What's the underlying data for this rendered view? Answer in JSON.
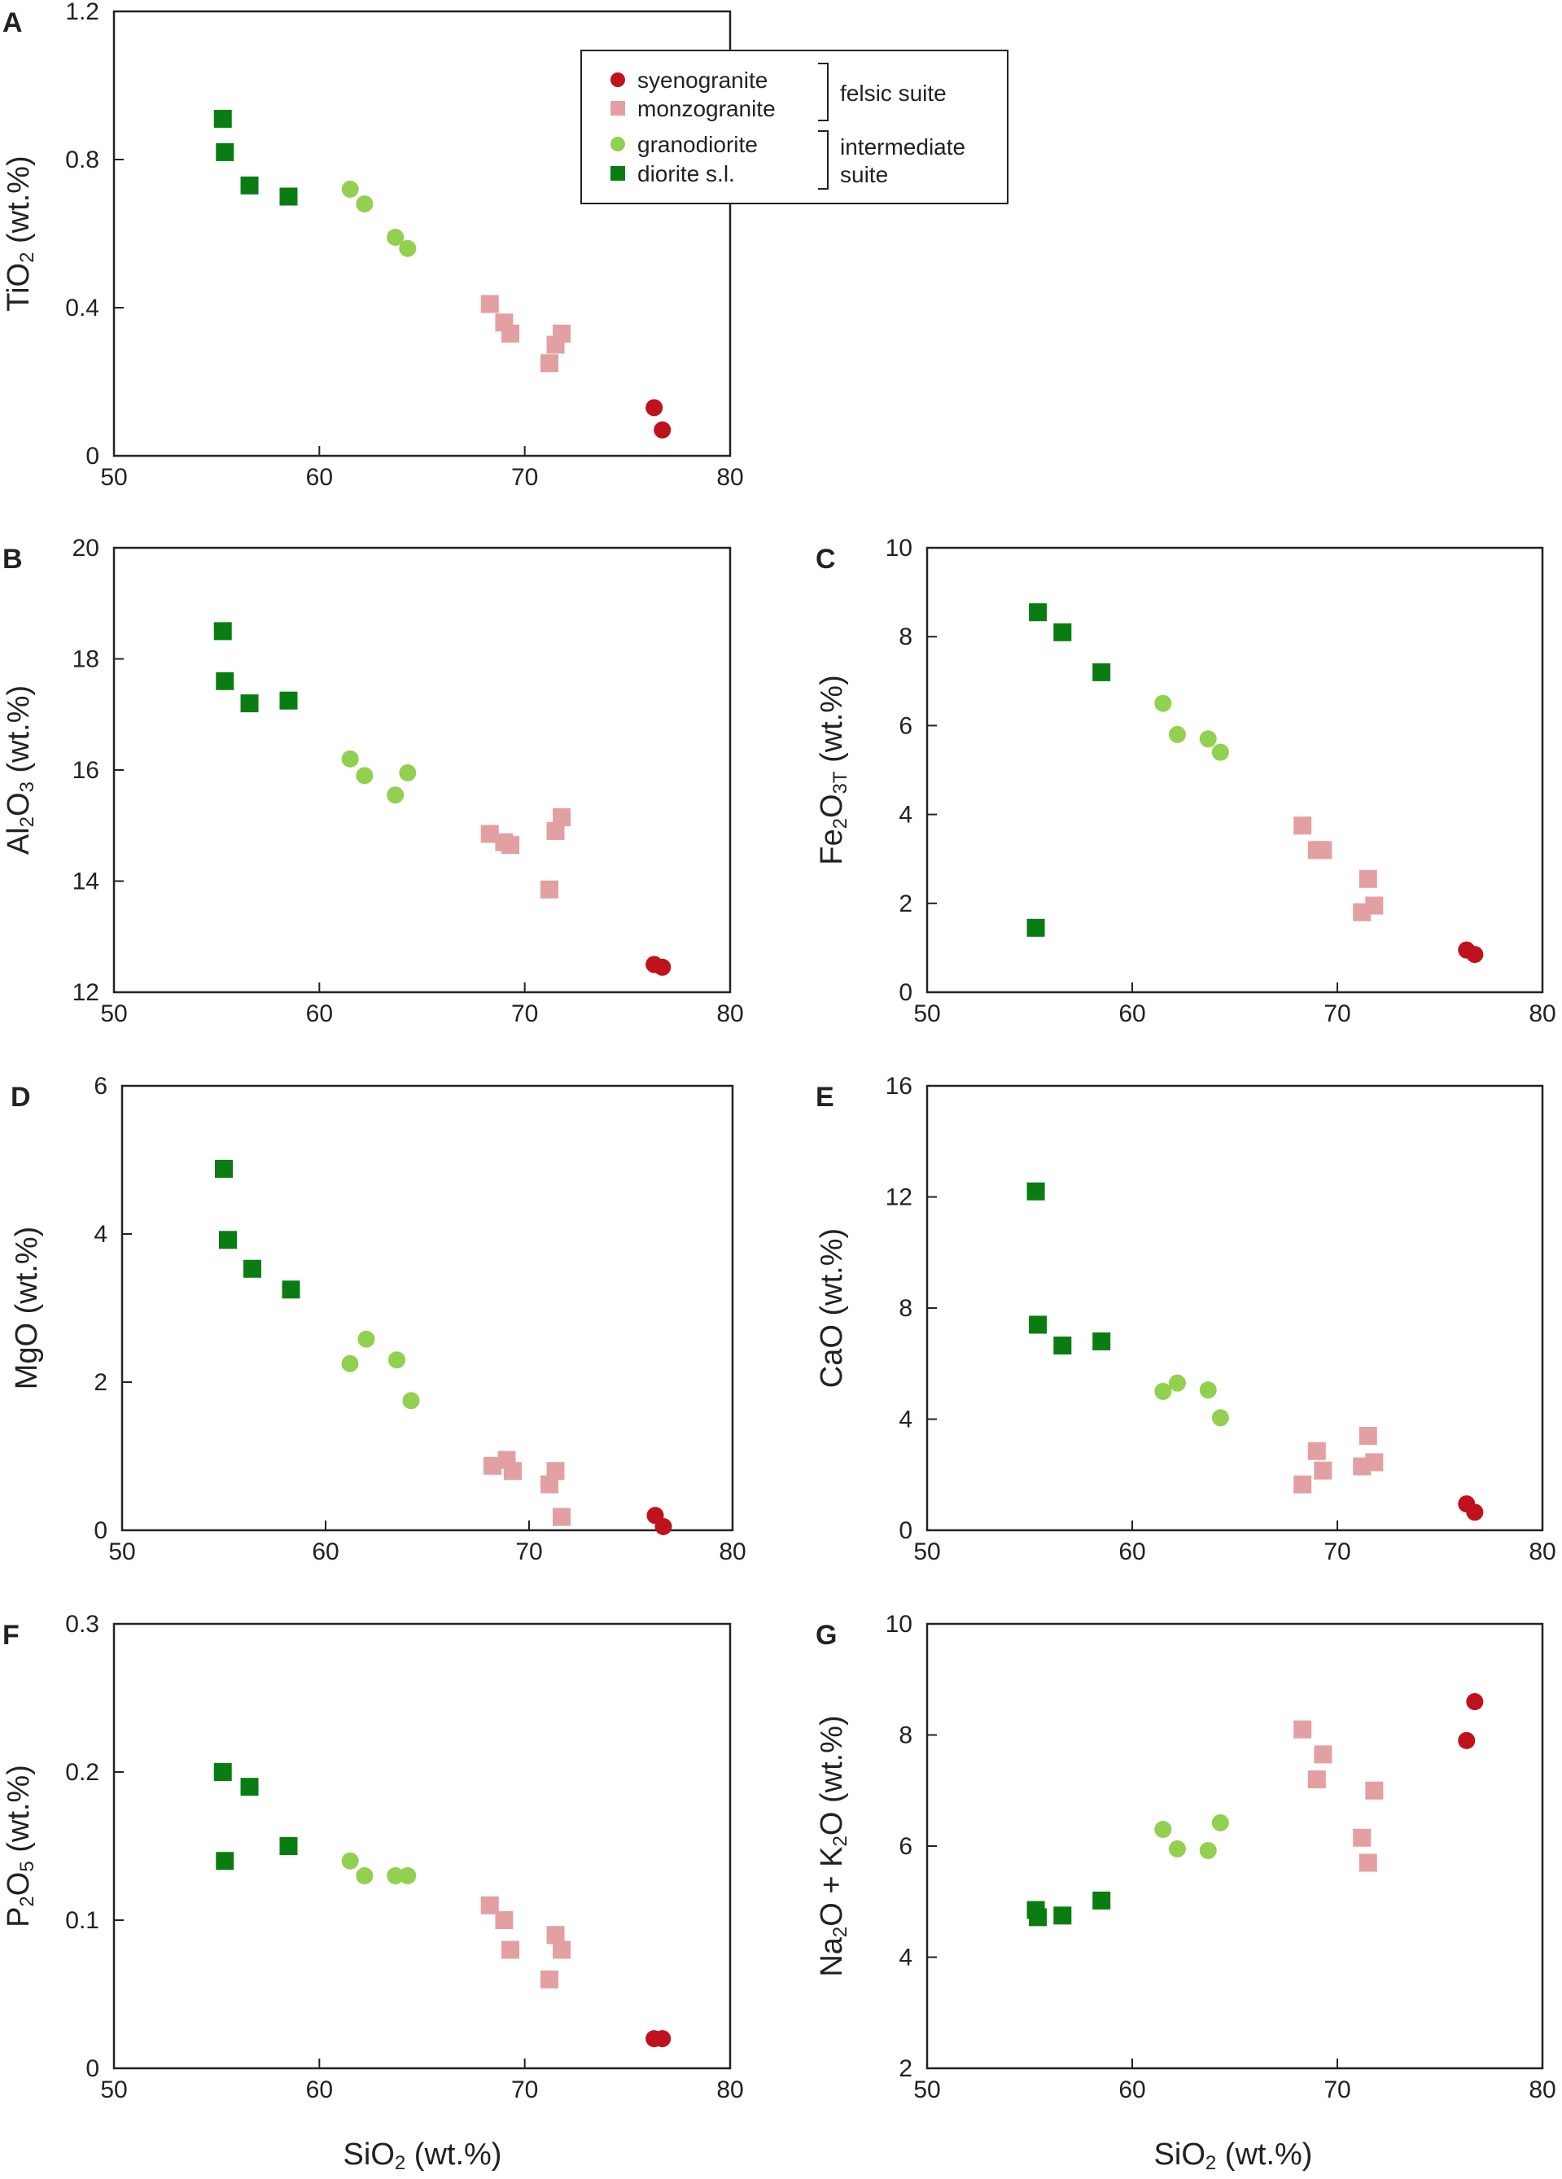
{
  "colors": {
    "syenogranite": "#c0121c",
    "monzogranite": "#e3a0a2",
    "granodiorite": "#92d050",
    "diorite": "#0a7d12",
    "axis": "#222222"
  },
  "legend": {
    "entries": [
      {
        "key": "syenogranite",
        "label": "syenogranite",
        "marker": "circle"
      },
      {
        "key": "monzogranite",
        "label": "monzogranite",
        "marker": "square"
      },
      {
        "key": "granodiorite",
        "label": "granodiorite",
        "marker": "circle"
      },
      {
        "key": "diorite",
        "label": "diorite s.l.",
        "marker": "square"
      }
    ],
    "groups": [
      {
        "lines": [
          "felsic suite"
        ]
      },
      {
        "lines": [
          "intermediate",
          "suite"
        ]
      }
    ]
  },
  "shared_xlabel": {
    "main": "SiO",
    "sub": "2",
    "tail": " (wt.%)"
  },
  "chart_data": [
    {
      "panel": "A",
      "type": "scatter",
      "ylabel": {
        "a": "TiO",
        "b": "2",
        "c": " (wt.%)"
      },
      "xlim": [
        50,
        80
      ],
      "ylim": [
        0,
        1.2
      ],
      "xticks": [
        "50",
        "60",
        "70",
        "80"
      ],
      "yticks": [
        "0",
        "0.4",
        "0.8",
        "1.2"
      ],
      "series": [
        {
          "name": "syenogranite",
          "x": [
            76.3,
            76.7
          ],
          "y": [
            0.13,
            0.07
          ]
        },
        {
          "name": "monzogranite",
          "x": [
            68.3,
            69.0,
            69.3,
            71.2,
            71.5,
            71.8
          ],
          "y": [
            0.41,
            0.36,
            0.33,
            0.25,
            0.3,
            0.33
          ]
        },
        {
          "name": "granodiorite",
          "x": [
            61.5,
            62.2,
            63.7,
            64.3
          ],
          "y": [
            0.72,
            0.68,
            0.59,
            0.56
          ]
        },
        {
          "name": "diorite",
          "x": [
            55.3,
            55.4,
            56.6,
            58.5
          ],
          "y": [
            0.91,
            0.82,
            0.73,
            0.7
          ]
        }
      ]
    },
    {
      "panel": "B",
      "type": "scatter",
      "ylabel": {
        "a": "Al",
        "b": "2",
        "c": "O",
        "d": "3",
        "e": " (wt.%)"
      },
      "xlim": [
        50,
        80
      ],
      "ylim": [
        12,
        20
      ],
      "xticks": [
        "50",
        "60",
        "70",
        "80"
      ],
      "yticks": [
        "12",
        "14",
        "16",
        "18",
        "20"
      ],
      "series": [
        {
          "name": "syenogranite",
          "x": [
            76.3,
            76.7
          ],
          "y": [
            12.5,
            12.45
          ]
        },
        {
          "name": "monzogranite",
          "x": [
            68.3,
            69.0,
            69.3,
            71.2,
            71.5,
            71.8
          ],
          "y": [
            14.85,
            14.7,
            14.65,
            13.85,
            14.9,
            15.15
          ]
        },
        {
          "name": "granodiorite",
          "x": [
            61.5,
            62.2,
            63.7,
            64.3
          ],
          "y": [
            16.2,
            15.9,
            15.55,
            15.95
          ]
        },
        {
          "name": "diorite",
          "x": [
            55.3,
            55.4,
            56.6,
            58.5
          ],
          "y": [
            18.5,
            17.6,
            17.2,
            17.25
          ]
        }
      ]
    },
    {
      "panel": "C",
      "type": "scatter",
      "ylabel": {
        "a": "Fe",
        "b": "2",
        "c": "O",
        "d": "3T",
        "e": " (wt.%)"
      },
      "xlim": [
        50,
        80
      ],
      "ylim": [
        0,
        10
      ],
      "xticks": [
        "50",
        "60",
        "70",
        "80"
      ],
      "yticks": [
        "0",
        "2",
        "4",
        "6",
        "8",
        "10"
      ],
      "series": [
        {
          "name": "syenogranite",
          "x": [
            76.3,
            76.7
          ],
          "y": [
            0.95,
            0.85
          ]
        },
        {
          "name": "monzogranite",
          "x": [
            68.3,
            69.0,
            69.3,
            71.2,
            71.5,
            71.8
          ],
          "y": [
            3.75,
            3.2,
            3.2,
            1.8,
            2.55,
            1.95
          ]
        },
        {
          "name": "granodiorite",
          "x": [
            61.5,
            62.2,
            63.7,
            64.3
          ],
          "y": [
            6.5,
            5.8,
            5.7,
            5.4
          ]
        },
        {
          "name": "diorite",
          "x": [
            55.3,
            55.4,
            56.6,
            58.5
          ],
          "y": [
            1.45,
            8.55,
            8.1,
            7.2
          ]
        }
      ]
    },
    {
      "panel": "D",
      "type": "scatter",
      "ylabel": {
        "a": "MgO (wt.%)"
      },
      "xlim": [
        50,
        80
      ],
      "ylim": [
        0,
        6
      ],
      "xticks": [
        "50",
        "60",
        "70",
        "80"
      ],
      "yticks": [
        "0",
        "2",
        "4",
        "6"
      ],
      "series": [
        {
          "name": "syenogranite",
          "x": [
            76.2,
            76.6
          ],
          "y": [
            0.2,
            0.05
          ]
        },
        {
          "name": "monzogranite",
          "x": [
            68.2,
            68.9,
            69.2,
            71.0,
            71.3,
            71.6
          ],
          "y": [
            0.87,
            0.95,
            0.8,
            0.62,
            0.8,
            0.18
          ]
        },
        {
          "name": "granodiorite",
          "x": [
            61.2,
            62.0,
            63.5,
            64.2
          ],
          "y": [
            2.25,
            2.58,
            2.3,
            1.75
          ]
        },
        {
          "name": "diorite",
          "x": [
            55.0,
            55.2,
            56.4,
            58.3
          ],
          "y": [
            4.88,
            3.92,
            3.53,
            3.25
          ]
        }
      ]
    },
    {
      "panel": "E",
      "type": "scatter",
      "ylabel": {
        "a": "CaO (wt.%)"
      },
      "xlim": [
        50,
        80
      ],
      "ylim": [
        0,
        16
      ],
      "xticks": [
        "50",
        "60",
        "70",
        "80"
      ],
      "yticks": [
        "0",
        "4",
        "8",
        "12",
        "16"
      ],
      "series": [
        {
          "name": "syenogranite",
          "x": [
            76.3,
            76.7
          ],
          "y": [
            0.95,
            0.65
          ]
        },
        {
          "name": "monzogranite",
          "x": [
            68.3,
            69.0,
            69.3,
            71.2,
            71.5,
            71.8
          ],
          "y": [
            1.65,
            2.85,
            2.15,
            2.3,
            3.4,
            2.45
          ]
        },
        {
          "name": "granodiorite",
          "x": [
            61.5,
            62.2,
            63.7,
            64.3
          ],
          "y": [
            5.0,
            5.3,
            5.05,
            4.05
          ]
        },
        {
          "name": "diorite",
          "x": [
            55.3,
            55.4,
            56.6,
            58.5
          ],
          "y": [
            12.2,
            7.4,
            6.65,
            6.8
          ]
        }
      ]
    },
    {
      "panel": "F",
      "type": "scatter",
      "ylabel": {
        "a": "P",
        "b": "2",
        "c": "O",
        "d": "5",
        "e": " (wt.%)"
      },
      "xlim": [
        50,
        80
      ],
      "ylim": [
        0,
        0.3
      ],
      "xticks": [
        "50",
        "60",
        "70",
        "80"
      ],
      "yticks": [
        "0",
        "0.1",
        "0.2",
        "0.3"
      ],
      "series": [
        {
          "name": "syenogranite",
          "x": [
            76.3,
            76.7
          ],
          "y": [
            0.02,
            0.02
          ]
        },
        {
          "name": "monzogranite",
          "x": [
            68.3,
            69.0,
            69.3,
            71.2,
            71.5,
            71.8
          ],
          "y": [
            0.11,
            0.1,
            0.08,
            0.06,
            0.09,
            0.08
          ]
        },
        {
          "name": "granodiorite",
          "x": [
            61.5,
            62.2,
            63.7,
            64.3
          ],
          "y": [
            0.14,
            0.13,
            0.13,
            0.13
          ]
        },
        {
          "name": "diorite",
          "x": [
            55.3,
            55.4,
            56.6,
            58.5
          ],
          "y": [
            0.2,
            0.14,
            0.19,
            0.15
          ]
        }
      ]
    },
    {
      "panel": "G",
      "type": "scatter",
      "ylabel": {
        "a": "Na",
        "b": "2",
        "c": "O + K",
        "d": "2",
        "e": "O (wt.%)"
      },
      "xlim": [
        50,
        80
      ],
      "ylim": [
        2,
        10
      ],
      "xticks": [
        "50",
        "60",
        "70",
        "80"
      ],
      "yticks": [
        "2",
        "4",
        "6",
        "8",
        "10"
      ],
      "series": [
        {
          "name": "syenogranite",
          "x": [
            76.3,
            76.7
          ],
          "y": [
            7.9,
            8.6
          ]
        },
        {
          "name": "monzogranite",
          "x": [
            68.3,
            69.0,
            69.3,
            71.2,
            71.5,
            71.8
          ],
          "y": [
            8.1,
            7.2,
            7.65,
            6.15,
            5.7,
            7.0
          ]
        },
        {
          "name": "granodiorite",
          "x": [
            61.5,
            62.2,
            63.7,
            64.3
          ],
          "y": [
            6.3,
            5.95,
            5.92,
            6.42
          ]
        },
        {
          "name": "diorite",
          "x": [
            55.3,
            55.4,
            56.6,
            58.5
          ],
          "y": [
            4.85,
            4.72,
            4.75,
            5.02
          ]
        }
      ]
    }
  ]
}
